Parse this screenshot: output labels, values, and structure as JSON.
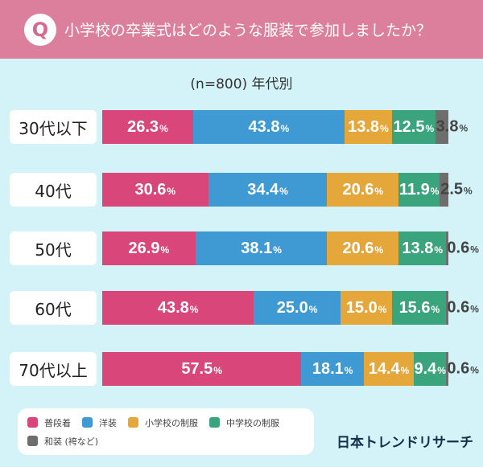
{
  "header": {
    "badge": "Q",
    "title": "小学校の卒業式はどのような服装で参加しましたか？"
  },
  "chart_data": {
    "type": "bar",
    "stacked": true,
    "orientation": "horizontal",
    "title": "小学校の卒業式はどのような服装で参加しましたか？",
    "subtitle": "(n=800) 年代別",
    "categories": [
      "30代以下",
      "40代",
      "50代",
      "60代",
      "70代以上"
    ],
    "unit": "%",
    "series": [
      {
        "name": "普段着",
        "color": "#d9467a",
        "values": [
          26.3,
          30.6,
          26.9,
          43.8,
          57.5
        ]
      },
      {
        "name": "洋装",
        "color": "#3f9ad3",
        "values": [
          43.8,
          34.4,
          38.1,
          25.0,
          18.1
        ]
      },
      {
        "name": "小学校の制服",
        "color": "#e6a73a",
        "values": [
          13.8,
          20.6,
          20.6,
          15.0,
          14.4
        ]
      },
      {
        "name": "中学校の制服",
        "color": "#3aa57d",
        "values": [
          12.5,
          11.9,
          13.8,
          15.6,
          9.4
        ]
      },
      {
        "name": "和装 (袴など)",
        "color": "#6e6e6e",
        "values": [
          3.8,
          2.5,
          0.6,
          0.6,
          0.6
        ]
      }
    ],
    "legend": "bottom-left"
  },
  "brand": "日本トレンドリサーチ"
}
